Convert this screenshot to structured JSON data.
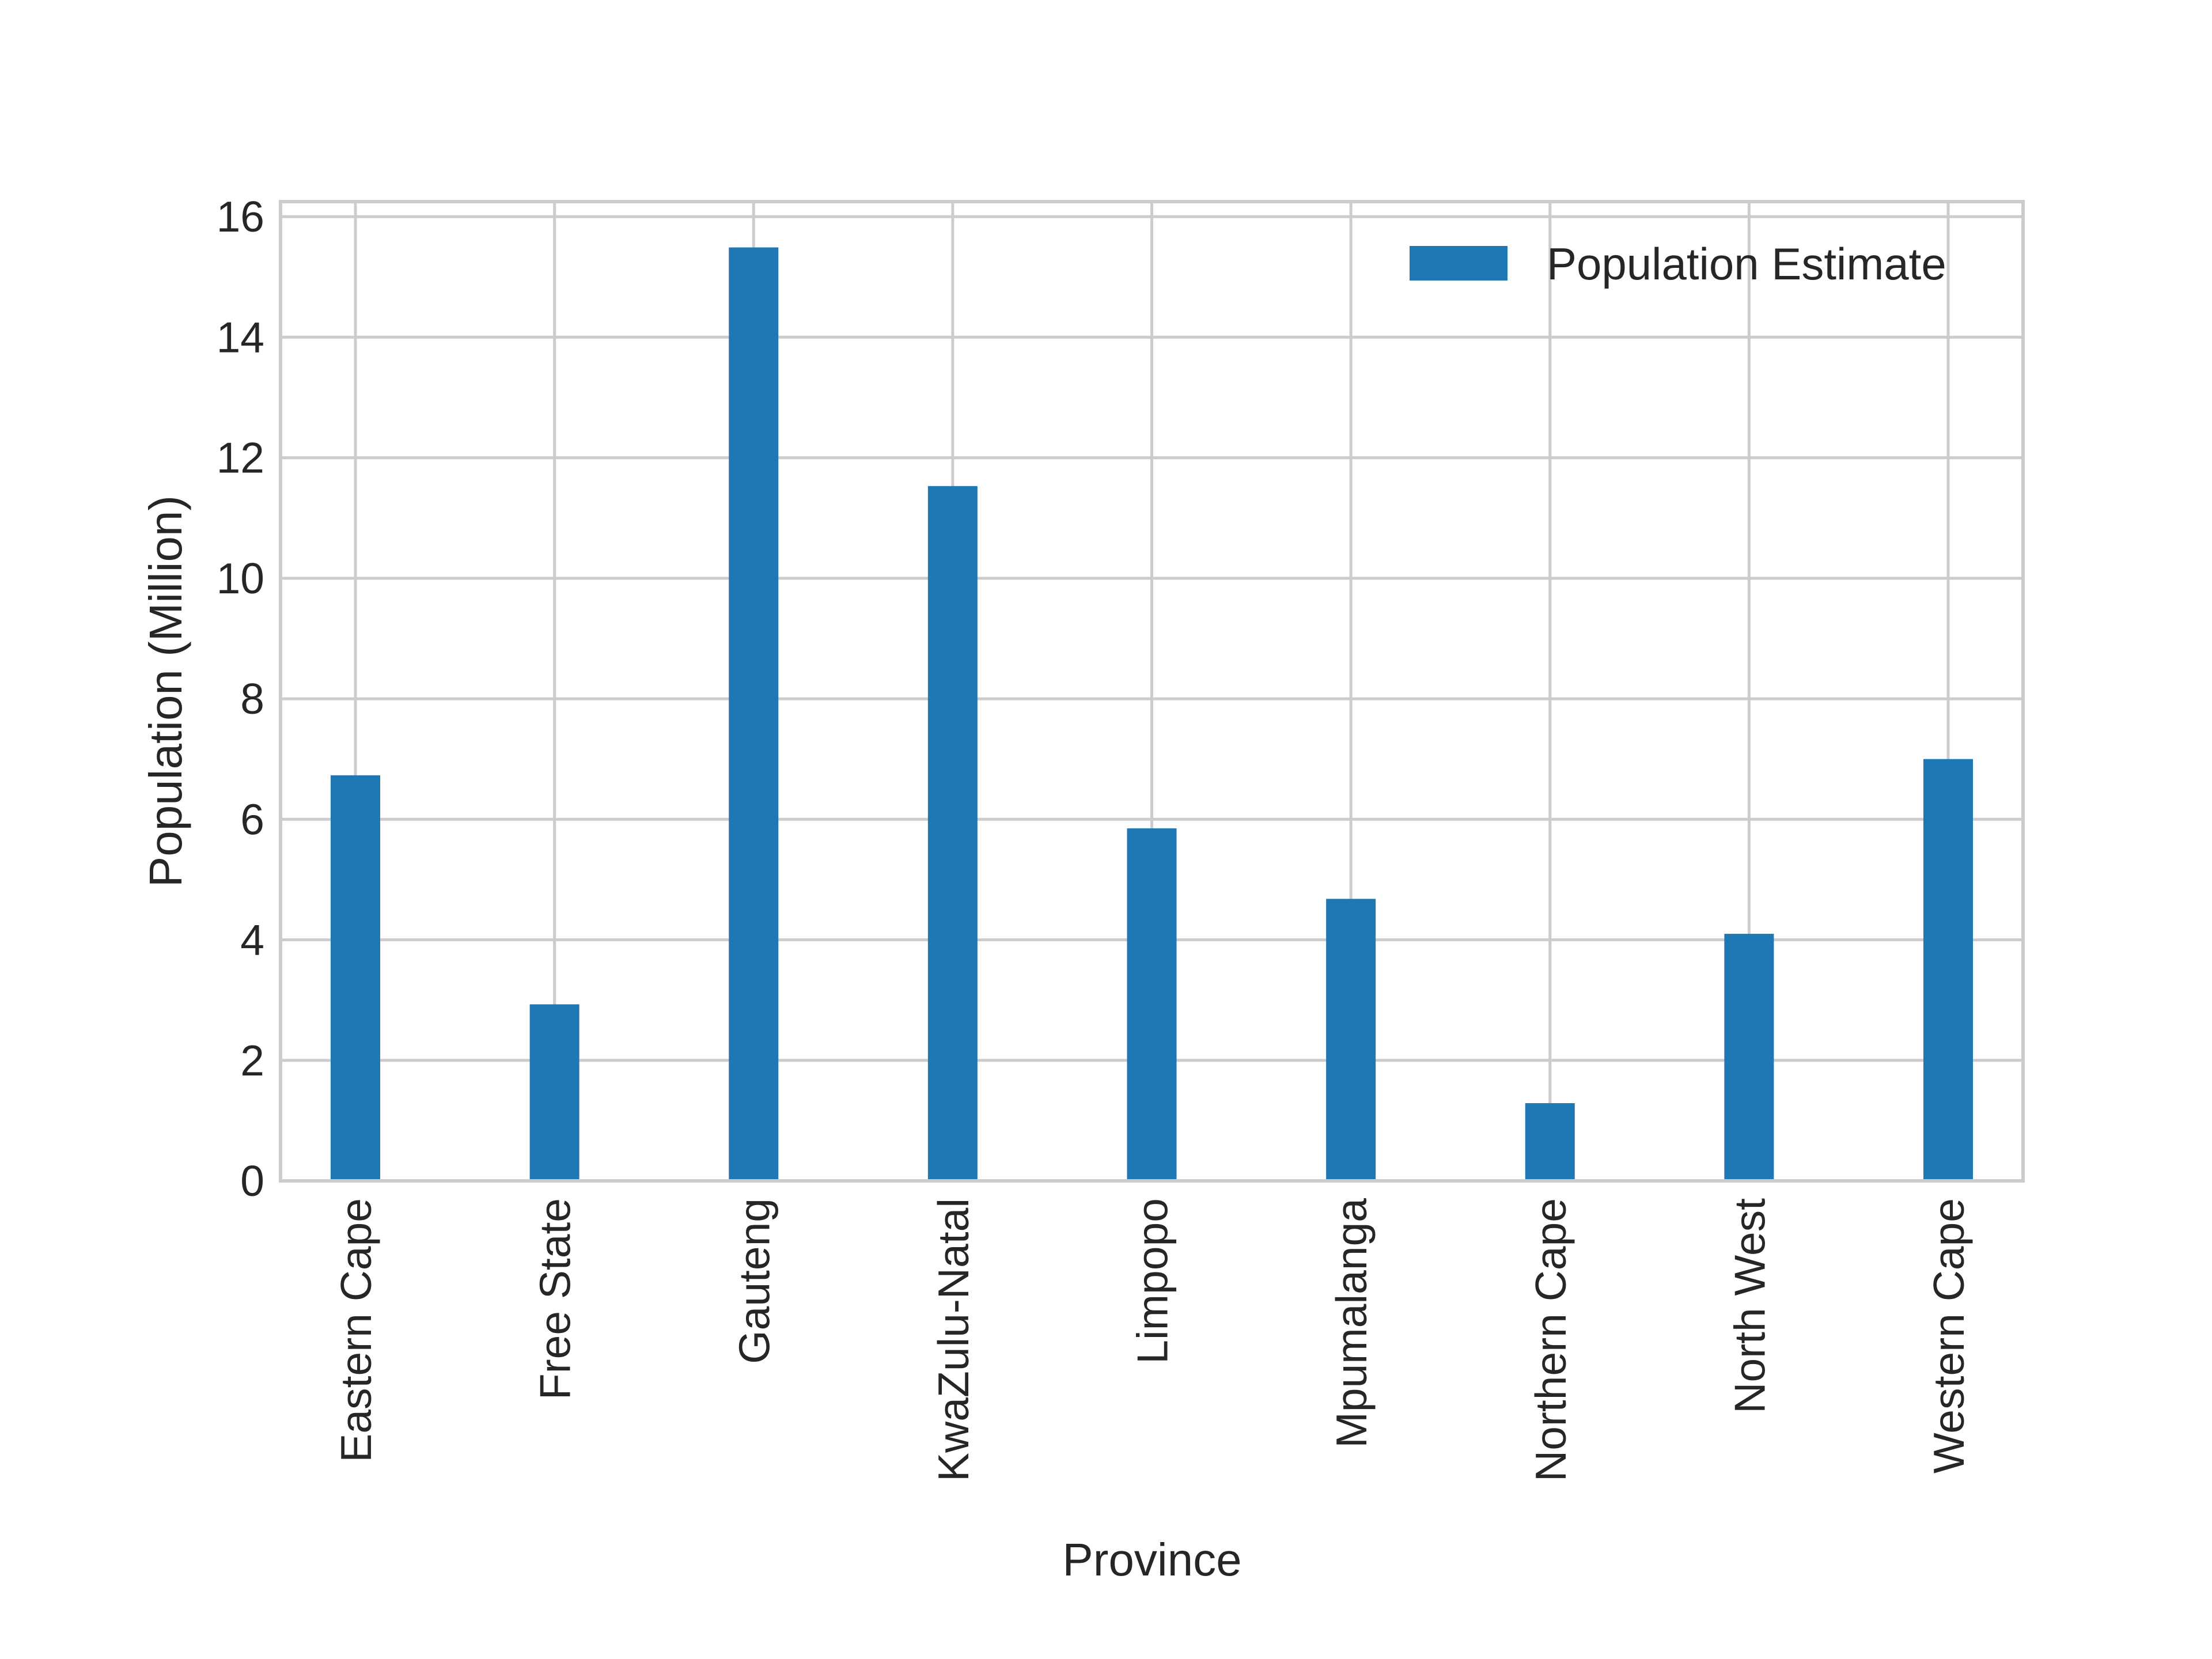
{
  "chart_data": {
    "type": "bar",
    "title": "",
    "xlabel": "Province",
    "ylabel": "Population (Million)",
    "categories": [
      "Eastern Cape",
      "Free State",
      "Gauteng",
      "KwaZulu-Natal",
      "Limpopo",
      "Mpumalanga",
      "Northern Cape",
      "North West",
      "Western Cape"
    ],
    "series": [
      {
        "name": "Population Estimate",
        "values": [
          6.73,
          2.93,
          15.49,
          11.53,
          5.85,
          4.68,
          1.29,
          4.1,
          7.0
        ],
        "color": "#1f77b4"
      }
    ],
    "ylim": [
      0,
      16.25
    ],
    "yticks": [
      0,
      2,
      4,
      6,
      8,
      10,
      12,
      14,
      16
    ],
    "grid": true,
    "legend_position": "top-right",
    "colors": {
      "grid": "#cccccc",
      "spine": "#cccccc",
      "text": "#262626",
      "background": "#ffffff"
    }
  }
}
